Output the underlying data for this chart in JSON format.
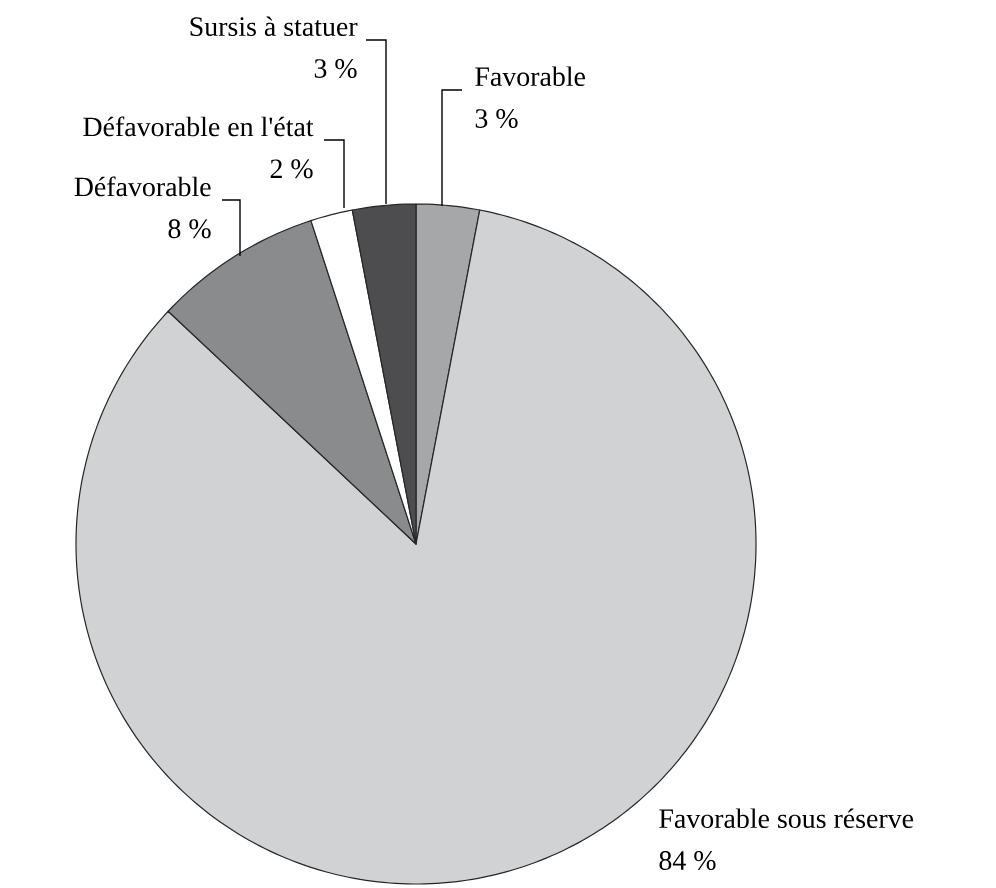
{
  "chart_data": {
    "type": "pie",
    "categories": [
      "Favorable",
      "Favorable sous réserve",
      "Défavorable",
      "Défavorable en l'état",
      "Sursis à statuer"
    ],
    "values": [
      3,
      84,
      8,
      2,
      3
    ],
    "value_labels": [
      "3 %",
      "84 %",
      "8 %",
      "2 %",
      "3 %"
    ],
    "colors": [
      "#a6a7a9",
      "#d1d2d4",
      "#8a8b8d",
      "#ffffff",
      "#4d4d4f"
    ],
    "legend": false
  }
}
